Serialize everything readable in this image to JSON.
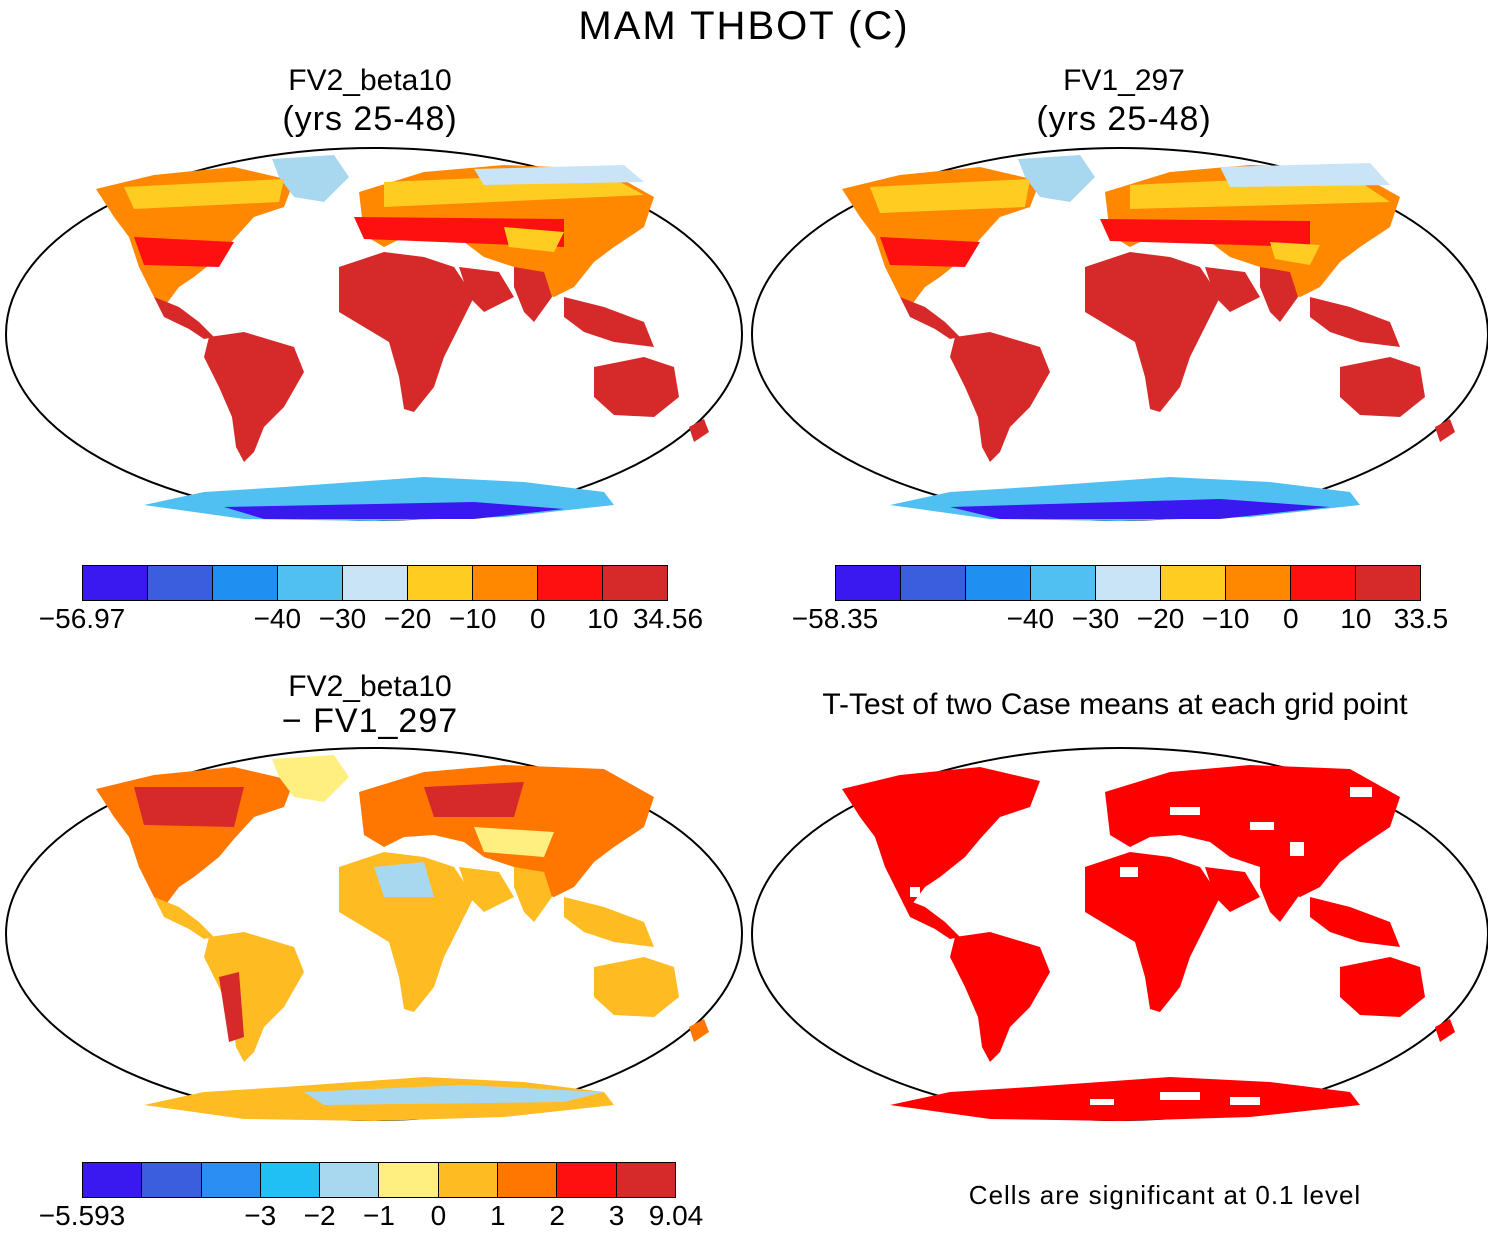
{
  "figure_title": "MAM THBOT (C)",
  "colors": {
    "land_hot": "#d62a2a",
    "land_warm": "#ff1010",
    "land_orange": "#ff8000",
    "land_yellow": "#ffcc22",
    "cold_light": "#c4e4f6",
    "cold_mid": "#4fc0f2",
    "cold_deep": "#3a20f0",
    "sig_red": "#ff0000"
  },
  "panels": [
    {
      "title": "FV2_beta10",
      "subtitle": "(yrs 25-48)",
      "colorbar": {
        "colors": [
          "#3a18f0",
          "#3a5ede",
          "#1f8ff2",
          "#50c0f2",
          "#c8e4f6",
          "#ffcc22",
          "#ff8800",
          "#ff1010",
          "#d62a2a"
        ],
        "ticks": [
          "−56.97",
          "−40",
          "−30",
          "−20",
          "−10",
          "0",
          "10",
          "34.56"
        ]
      }
    },
    {
      "title": "FV1_297",
      "subtitle": "(yrs 25-48)",
      "colorbar": {
        "colors": [
          "#3a18f0",
          "#3a5ede",
          "#1f8ff2",
          "#50c0f2",
          "#c8e4f6",
          "#ffcc22",
          "#ff8800",
          "#ff1010",
          "#d62a2a"
        ],
        "ticks": [
          "−58.35",
          "−40",
          "−30",
          "−20",
          "−10",
          "0",
          "10",
          "33.5"
        ]
      }
    },
    {
      "title": "FV2_beta10",
      "subtitle": "− FV1_297",
      "colorbar": {
        "colors": [
          "#3a18f0",
          "#3a5ede",
          "#2a8ef2",
          "#20c0f5",
          "#a8d8f0",
          "#ffee80",
          "#ffbb22",
          "#ff7700",
          "#ff1010",
          "#d62a2a"
        ],
        "ticks": [
          "−5.593",
          "−3",
          "−2",
          "−1",
          "0",
          "1",
          "2",
          "3",
          "9.04"
        ]
      }
    },
    {
      "title": "T-Test of two Case means at each grid point",
      "footnote": "Cells are significant at 0.1 level"
    }
  ]
}
